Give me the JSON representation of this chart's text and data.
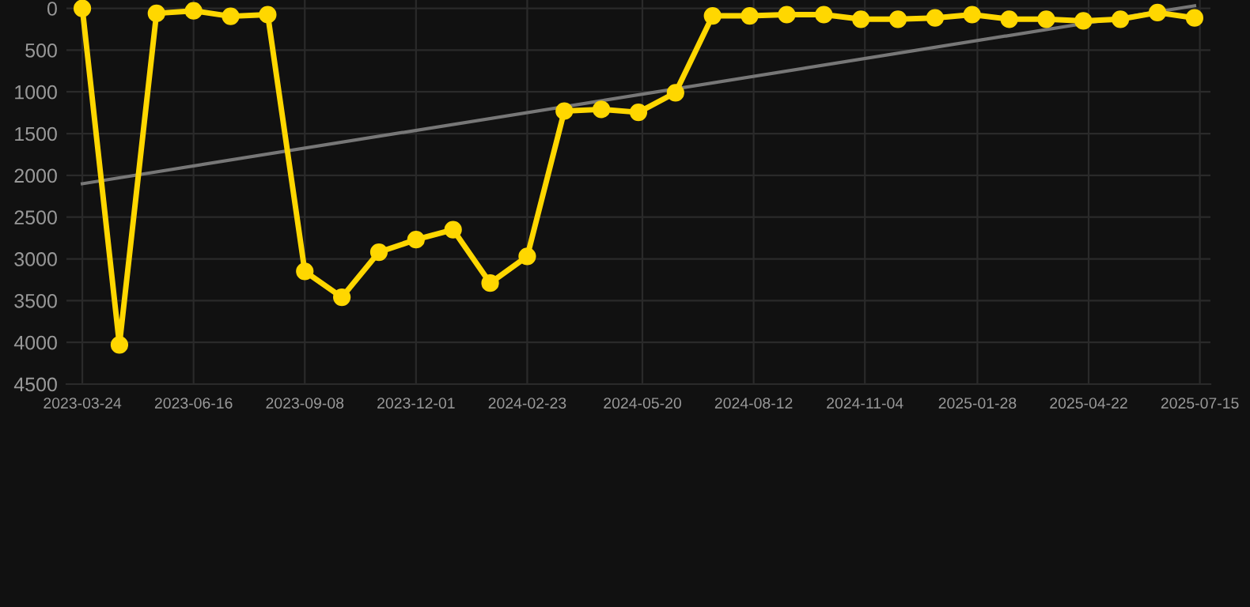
{
  "chart_data": {
    "type": "line",
    "x": [
      "2023-03-24",
      "2023-04-21",
      "2023-05-19",
      "2023-06-16",
      "2023-07-14",
      "2023-08-11",
      "2023-09-08",
      "2023-10-06",
      "2023-11-03",
      "2023-12-01",
      "2023-12-29",
      "2024-01-26",
      "2024-02-23",
      "2024-03-22",
      "2024-04-19",
      "2024-05-17",
      "2024-06-14",
      "2024-07-12",
      "2024-08-09",
      "2024-09-06",
      "2024-10-04",
      "2024-11-01",
      "2024-11-29",
      "2024-12-27",
      "2025-01-24",
      "2025-02-21",
      "2025-03-21",
      "2025-04-18",
      "2025-05-16",
      "2025-06-13",
      "2025-07-11"
    ],
    "series": [
      {
        "color": "#ffd700",
        "marker": "circle",
        "values": [
          0,
          4030,
          60,
          30,
          95,
          75,
          3150,
          3460,
          2920,
          2770,
          2650,
          3290,
          2970,
          1230,
          1210,
          1245,
          1010,
          90,
          90,
          75,
          75,
          130,
          130,
          115,
          75,
          130,
          130,
          150,
          130,
          50,
          115
        ]
      },
      {
        "type": "line",
        "color": "#777777",
        "marker": "none",
        "x": [
          "2023-03-24",
          "2025-07-11"
        ],
        "values": [
          2100,
          -30
        ]
      }
    ],
    "ylim": [
      4500,
      -100
    ],
    "yticks": [
      0,
      500,
      1000,
      1500,
      2000,
      2500,
      3000,
      3500,
      4000,
      4500
    ],
    "xlim": [
      "2023-03-12",
      "2025-07-23"
    ],
    "xticks": [
      {
        "value": "2023-03-24",
        "label": "2023-03-24"
      },
      {
        "value": "2023-06-16",
        "label": "2023-06-16"
      },
      {
        "value": "2023-09-08",
        "label": "2023-09-08"
      },
      {
        "value": "2023-12-01",
        "label": "2023-12-01"
      },
      {
        "value": "2024-02-23",
        "label": "2024-02-23"
      },
      {
        "value": "2024-05-20",
        "label": "2024-05-20"
      },
      {
        "value": "2024-08-12",
        "label": "2024-08-12"
      },
      {
        "value": "2024-11-04",
        "label": "2024-11-04"
      },
      {
        "value": "2025-01-28",
        "label": "2025-01-28"
      },
      {
        "value": "2025-04-22",
        "label": "2025-04-22"
      },
      {
        "value": "2025-07-15",
        "label": "2025-07-15"
      }
    ],
    "grid": true
  }
}
